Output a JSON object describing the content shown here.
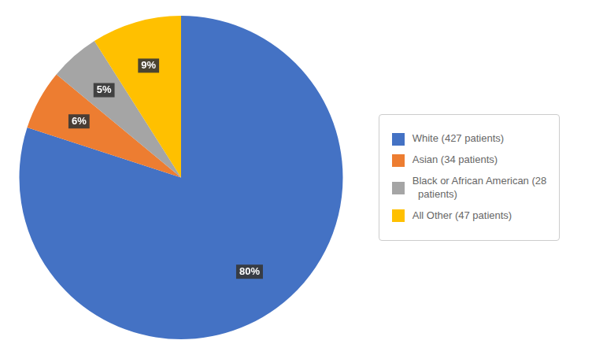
{
  "chart_data": {
    "type": "pie",
    "categories": [
      "White (427 patients)",
      "Asian (34 patients)",
      "Black or African American (28\n  patients)",
      "All Other (47 patients)"
    ],
    "values": [
      80,
      6,
      5,
      9
    ],
    "value_labels": [
      "80%",
      "6%",
      "5%",
      "9%"
    ],
    "colors": [
      "#4472C4",
      "#ED7D31",
      "#A5A5A5",
      "#FFC000"
    ],
    "data_labels": true,
    "legend": "right"
  }
}
